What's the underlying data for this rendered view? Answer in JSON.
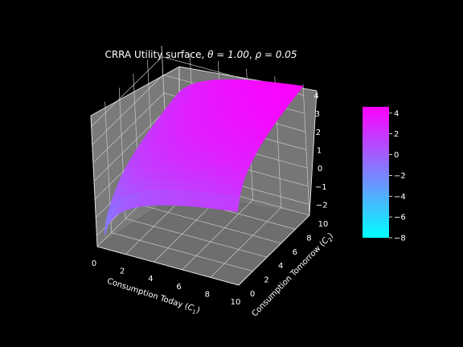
{
  "chart_data": {
    "type": "surface",
    "title_prefix": "CRRA Utility surface, ",
    "title_theta": "θ = 1.00",
    "title_sep": ", ",
    "title_rho": "ρ = 0.05",
    "parameters": {
      "theta": 1.0,
      "rho": 0.05
    },
    "xlabel_main": "Consumption Today (",
    "xlabel_var": "C",
    "xlabel_sub": "1",
    "xlabel_close": ")",
    "ylabel_main": "Consumption Tomorrow (",
    "ylabel_var": "C",
    "ylabel_sub": "2",
    "ylabel_close": ")",
    "x_ticks": [
      "0",
      "2",
      "4",
      "6",
      "8",
      "10"
    ],
    "y_ticks": [
      "0",
      "2",
      "4",
      "6",
      "8",
      "10"
    ],
    "z_ticks": [
      "−2",
      "−1",
      "0",
      "1",
      "2",
      "3",
      "4"
    ],
    "xlim": [
      0,
      10
    ],
    "ylim": [
      0,
      10
    ],
    "zlim": [
      -2.6,
      4.6
    ],
    "colorbar": {
      "ticks": [
        "4",
        "2",
        "0",
        "−2",
        "−4",
        "−6",
        "−8"
      ],
      "range": [
        -8,
        4.6
      ],
      "colormap": "cool",
      "colors": [
        "#00ffff",
        "#ff00ff"
      ]
    },
    "surface_fill_color": "#ee11f4",
    "pane_color": "#7a7a7a",
    "background_color": "#000000",
    "grid": true
  }
}
